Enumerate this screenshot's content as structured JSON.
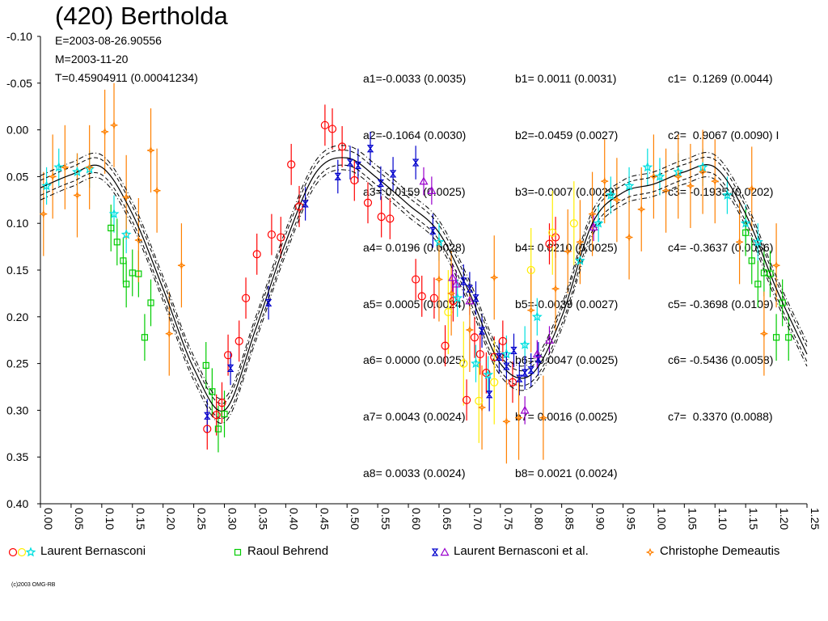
{
  "title": "(420) Bertholda",
  "header": {
    "epoch": "E=2003-08-26.90556",
    "mean": "M=2003-11-20",
    "period": "T=0.45904911 (0.00041234)"
  },
  "coefficients": {
    "a": [
      "a1=-0.0033 (0.0035)",
      "a2=-0.1064 (0.0030)",
      "a3= 0.0159 (0.0025)",
      "a4= 0.0196 (0.0028)",
      "a5= 0.0005 (0.0024)",
      "a6= 0.0000 (0.0025)",
      "a7= 0.0043 (0.0024)",
      "a8= 0.0033 (0.0024)"
    ],
    "b": [
      "b1= 0.0011 (0.0031)",
      "b2=-0.0459 (0.0027)",
      "b3=-0.0007 (0.0029)",
      "b4= 0.0210 (0.0025)",
      "b5=-0.0039 (0.0027)",
      "b6=-0.0047 (0.0025)",
      "b7= 0.0016 (0.0025)",
      "b8= 0.0021 (0.0024)"
    ],
    "c": [
      "c1=  0.1269 (0.0044)",
      "c2=  0.9067 (0.0090) I",
      "c3= -0.1935 (0.0202)",
      "c4= -0.3637 (0.0056)",
      "c5= -0.3698 (0.0109)",
      "c6= -0.5436 (0.0058)",
      "c7=  0.3370 (0.0088)"
    ]
  },
  "legend": [
    {
      "label": "Laurent Bernasconi",
      "color": "#ff0000"
    },
    {
      "label": "Raoul Behrend",
      "color": "#00cc00"
    },
    {
      "label": "Laurent Bernasconi et al.",
      "color": "#0000cc"
    },
    {
      "label": "Christophe Demeautis",
      "color": "#ff8000"
    }
  ],
  "copyright": "(c)2003 OMG-RB",
  "chart_data": {
    "type": "scatter",
    "xlim": [
      0,
      1.25
    ],
    "ylim": [
      -0.1,
      0.4
    ],
    "y_inverted": true,
    "x_ticks": [
      "0.00",
      "0.05",
      "0.10",
      "0.15",
      "0.20",
      "0.25",
      "0.30",
      "0.35",
      "0.40",
      "0.45",
      "0.50",
      "0.55",
      "0.60",
      "0.65",
      "0.70",
      "0.75",
      "0.80",
      "0.85",
      "0.90",
      "0.95",
      "1.00",
      "1.05",
      "1.10",
      "1.15",
      "1.20",
      "1.25"
    ],
    "y_ticks": [
      "-0.10",
      "-0.05",
      "0.00",
      "0.05",
      "0.10",
      "0.15",
      "0.20",
      "0.25",
      "0.30",
      "0.35",
      "0.40"
    ],
    "fit_curve": {
      "x": [
        0.0,
        0.05,
        0.1,
        0.15,
        0.2,
        0.25,
        0.3,
        0.35,
        0.4,
        0.45,
        0.5,
        0.55,
        0.6,
        0.65,
        0.7,
        0.75,
        0.8,
        0.85,
        0.9,
        0.95,
        1.0,
        1.05,
        1.1,
        1.15,
        1.2,
        1.25
      ],
      "y": [
        0.062,
        0.048,
        0.04,
        0.09,
        0.17,
        0.255,
        0.3,
        0.215,
        0.12,
        0.045,
        0.03,
        0.052,
        0.08,
        0.11,
        0.175,
        0.25,
        0.262,
        0.2,
        0.1,
        0.067,
        0.058,
        0.045,
        0.04,
        0.09,
        0.17,
        0.24
      ],
      "band": 0.008,
      "dashdot_offset": 0.013
    },
    "series": [
      {
        "name": "Laurent Bernasconi",
        "marker": "circle",
        "color": "#ff0000",
        "err": 0.022,
        "points": [
          [
            0.272,
            0.32
          ],
          [
            0.287,
            0.305
          ],
          [
            0.296,
            0.292
          ],
          [
            0.306,
            0.241
          ],
          [
            0.324,
            0.226
          ],
          [
            0.335,
            0.18
          ],
          [
            0.353,
            0.133
          ],
          [
            0.377,
            0.112
          ],
          [
            0.392,
            0.115
          ],
          [
            0.409,
            0.037
          ],
          [
            0.422,
            0.082
          ],
          [
            0.464,
            -0.005
          ],
          [
            0.476,
            -0.001
          ],
          [
            0.492,
            0.018
          ],
          [
            0.512,
            0.054
          ],
          [
            0.534,
            0.078
          ],
          [
            0.556,
            0.093
          ],
          [
            0.57,
            0.095
          ],
          [
            0.612,
            0.16
          ],
          [
            0.622,
            0.178
          ],
          [
            0.642,
            0.18
          ],
          [
            0.66,
            0.231
          ],
          [
            0.673,
            0.183
          ],
          [
            0.695,
            0.289
          ],
          [
            0.708,
            0.222
          ],
          [
            0.717,
            0.24
          ],
          [
            0.727,
            0.26
          ],
          [
            0.74,
            0.243
          ],
          [
            0.754,
            0.226
          ],
          [
            0.77,
            0.27
          ],
          [
            0.83,
            0.122
          ],
          [
            0.84,
            0.115
          ]
        ]
      },
      {
        "name": "Laurent Bernasconi (yellow)",
        "marker": "circle",
        "color": "#ffee00",
        "err": 0.045,
        "points": [
          [
            0.665,
            0.195
          ],
          [
            0.69,
            0.25
          ],
          [
            0.715,
            0.29
          ],
          [
            0.74,
            0.27
          ],
          [
            0.8,
            0.15
          ],
          [
            0.835,
            0.11
          ],
          [
            0.87,
            0.1
          ]
        ]
      },
      {
        "name": "Laurent Bernasconi (cyan)",
        "marker": "star",
        "color": "#00e0e0",
        "err": 0.02,
        "points": [
          [
            0.01,
            0.06
          ],
          [
            0.03,
            0.04
          ],
          [
            0.06,
            0.045
          ],
          [
            0.08,
            0.042
          ],
          [
            0.12,
            0.09
          ],
          [
            0.14,
            0.112
          ],
          [
            0.65,
            0.12
          ],
          [
            0.68,
            0.18
          ],
          [
            0.71,
            0.25
          ],
          [
            0.73,
            0.262
          ],
          [
            0.76,
            0.24
          ],
          [
            0.79,
            0.23
          ],
          [
            0.81,
            0.2
          ],
          [
            0.88,
            0.14
          ],
          [
            0.91,
            0.1
          ],
          [
            0.93,
            0.07
          ],
          [
            0.96,
            0.06
          ],
          [
            0.99,
            0.04
          ],
          [
            1.01,
            0.05
          ],
          [
            1.04,
            0.045
          ],
          [
            1.08,
            0.04
          ],
          [
            1.12,
            0.07
          ],
          [
            1.15,
            0.1
          ],
          [
            1.17,
            0.12
          ]
        ]
      },
      {
        "name": "Raoul Behrend",
        "marker": "square",
        "color": "#00cc00",
        "err": 0.025,
        "points": [
          [
            0.115,
            0.105
          ],
          [
            0.125,
            0.12
          ],
          [
            0.135,
            0.14
          ],
          [
            0.14,
            0.165
          ],
          [
            0.15,
            0.153
          ],
          [
            0.16,
            0.154
          ],
          [
            0.17,
            0.222
          ],
          [
            0.18,
            0.185
          ],
          [
            0.27,
            0.252
          ],
          [
            0.28,
            0.28
          ],
          [
            0.29,
            0.32
          ],
          [
            0.3,
            0.304
          ],
          [
            1.15,
            0.11
          ],
          [
            1.16,
            0.14
          ],
          [
            1.17,
            0.165
          ],
          [
            1.18,
            0.153
          ],
          [
            1.19,
            0.154
          ],
          [
            1.2,
            0.222
          ],
          [
            1.21,
            0.185
          ],
          [
            1.22,
            0.222
          ]
        ]
      },
      {
        "name": "Laurent Bernasconi et al.",
        "marker": "hourglass",
        "color": "#0000cc",
        "err": 0.018,
        "points": [
          [
            0.272,
            0.306
          ],
          [
            0.31,
            0.255
          ],
          [
            0.372,
            0.185
          ],
          [
            0.432,
            0.079
          ],
          [
            0.485,
            0.05
          ],
          [
            0.505,
            0.035
          ],
          [
            0.518,
            0.038
          ],
          [
            0.538,
            0.02
          ],
          [
            0.555,
            0.057
          ],
          [
            0.575,
            0.047
          ],
          [
            0.612,
            0.035
          ],
          [
            0.64,
            0.108
          ],
          [
            0.69,
            0.162
          ],
          [
            0.7,
            0.17
          ],
          [
            0.71,
            0.18
          ],
          [
            0.72,
            0.215
          ],
          [
            0.732,
            0.283
          ],
          [
            0.748,
            0.243
          ],
          [
            0.76,
            0.253
          ],
          [
            0.772,
            0.236
          ],
          [
            0.781,
            0.266
          ],
          [
            0.79,
            0.26
          ],
          [
            0.8,
            0.257
          ],
          [
            0.812,
            0.245
          ]
        ]
      },
      {
        "name": "Laurent Bernasconi et al. (triangle)",
        "marker": "triangle",
        "color": "#9900cc",
        "err": 0.015,
        "points": [
          [
            0.625,
            0.055
          ],
          [
            0.638,
            0.065
          ],
          [
            0.672,
            0.158
          ],
          [
            0.678,
            0.165
          ],
          [
            0.7,
            0.183
          ],
          [
            0.79,
            0.3
          ],
          [
            0.81,
            0.24
          ],
          [
            0.83,
            0.225
          ],
          [
            0.902,
            0.104
          ]
        ]
      },
      {
        "name": "Christophe Demeautis",
        "marker": "diamond",
        "color": "#ff8000",
        "err": 0.045,
        "points": [
          [
            0.005,
            0.09
          ],
          [
            0.02,
            0.05
          ],
          [
            0.04,
            0.04
          ],
          [
            0.06,
            0.07
          ],
          [
            0.08,
            0.04
          ],
          [
            0.105,
            0.002
          ],
          [
            0.12,
            -0.005
          ],
          [
            0.14,
            0.072
          ],
          [
            0.16,
            0.118
          ],
          [
            0.18,
            0.022
          ],
          [
            0.19,
            0.065
          ],
          [
            0.21,
            0.218
          ],
          [
            0.23,
            0.145
          ],
          [
            0.65,
            0.16
          ],
          [
            0.67,
            0.175
          ],
          [
            0.7,
            0.214
          ],
          [
            0.72,
            0.297
          ],
          [
            0.74,
            0.158
          ],
          [
            0.76,
            0.312
          ],
          [
            0.78,
            0.308
          ],
          [
            0.8,
            0.193
          ],
          [
            0.82,
            0.308
          ],
          [
            0.84,
            0.17
          ],
          [
            0.86,
            0.13
          ],
          [
            0.88,
            0.12
          ],
          [
            0.9,
            0.09
          ],
          [
            0.92,
            0.055
          ],
          [
            0.94,
            0.075
          ],
          [
            0.96,
            0.115
          ],
          [
            0.98,
            0.085
          ],
          [
            1.0,
            0.05
          ],
          [
            1.02,
            0.065
          ],
          [
            1.04,
            0.05
          ],
          [
            1.06,
            0.06
          ],
          [
            1.08,
            0.045
          ],
          [
            1.1,
            0.055
          ],
          [
            1.14,
            0.12
          ],
          [
            1.16,
            0.063
          ],
          [
            1.18,
            0.218
          ],
          [
            1.2,
            0.145
          ]
        ]
      }
    ]
  }
}
